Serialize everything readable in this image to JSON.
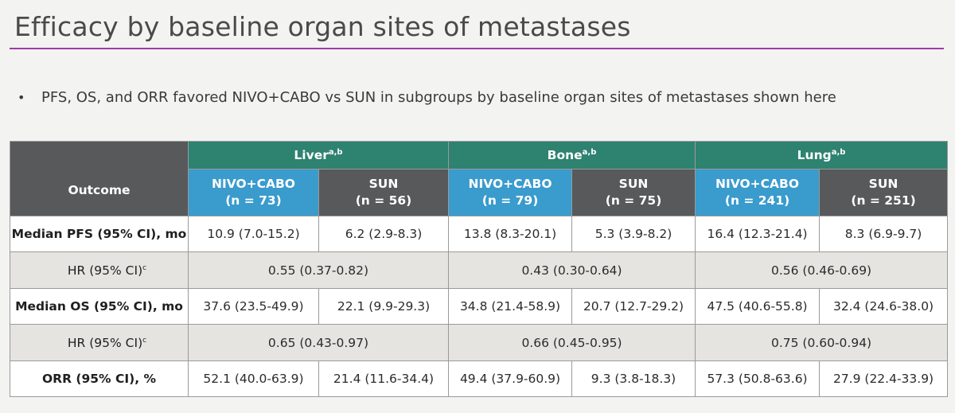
{
  "slide": {
    "title": "Efficacy by baseline organ sites of metastases",
    "bullet_symbol": "•",
    "bullet": "PFS, OS, and ORR favored NIVO+CABO vs SUN in subgroups by baseline organ sites of metastases shown here",
    "accent_color": "#a23aa5"
  },
  "table": {
    "outcome_header": "Outcome",
    "sites": [
      {
        "name": "Liver",
        "sup": "a,b"
      },
      {
        "name": "Bone",
        "sup": "a,b"
      },
      {
        "name": "Lung",
        "sup": "a,b"
      }
    ],
    "arms": [
      {
        "name": "NIVO+CABO",
        "n": "(n = 73)"
      },
      {
        "name": "SUN",
        "n": "(n = 56)"
      },
      {
        "name": "NIVO+CABO",
        "n": "(n = 79)"
      },
      {
        "name": "SUN",
        "n": "(n = 75)"
      },
      {
        "name": "NIVO+CABO",
        "n": "(n = 241)"
      },
      {
        "name": "SUN",
        "n": "(n = 251)"
      }
    ],
    "rows": {
      "pfs": {
        "label": "Median PFS (95% CI), mo",
        "values": [
          "10.9 (7.0-15.2)",
          "6.2 (2.9-8.3)",
          "13.8 (8.3-20.1)",
          "5.3 (3.9-8.2)",
          "16.4 (12.3-21.4)",
          "8.3 (6.9-9.7)"
        ]
      },
      "pfs_hr": {
        "label": "HR (95% CI)",
        "sup": "c",
        "values": [
          "0.55 (0.37-0.82)",
          "0.43 (0.30-0.64)",
          "0.56 (0.46-0.69)"
        ]
      },
      "os": {
        "label": "Median OS (95% CI), mo",
        "values": [
          "37.6 (23.5-49.9)",
          "22.1 (9.9-29.3)",
          "34.8 (21.4-58.9)",
          "20.7 (12.7-29.2)",
          "47.5 (40.6-55.8)",
          "32.4 (24.6-38.0)"
        ]
      },
      "os_hr": {
        "label": "HR (95% CI)",
        "sup": "c",
        "values": [
          "0.65 (0.43-0.97)",
          "0.66 (0.45-0.95)",
          "0.75 (0.60-0.94)"
        ]
      },
      "orr": {
        "label": "ORR (95% CI), %",
        "values": [
          "52.1 (40.0-63.9)",
          "21.4 (11.6-34.4)",
          "49.4 (37.9-60.9)",
          "9.3 (3.8-18.3)",
          "57.3 (50.8-63.6)",
          "27.9 (22.4-33.9)"
        ]
      }
    }
  },
  "colors": {
    "site_header": "#2e8270",
    "nivo_header": "#3a9bcd",
    "sun_header": "#58595b",
    "hr_row": "#e6e4e0"
  }
}
